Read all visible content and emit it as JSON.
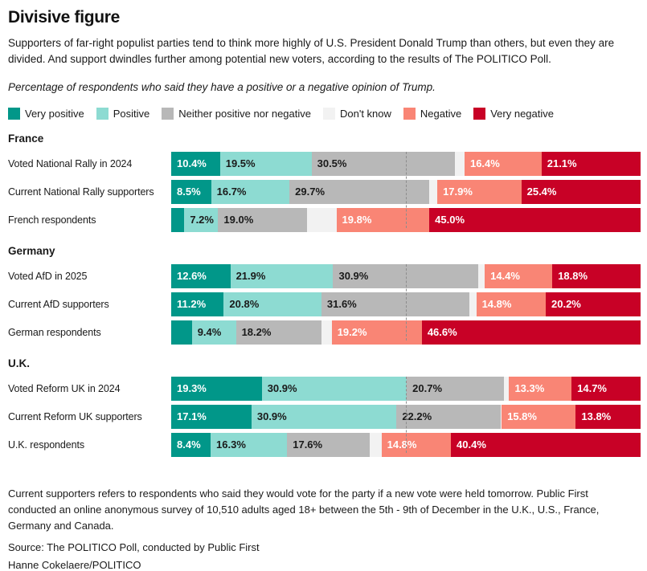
{
  "header": {
    "title": "Divisive figure",
    "subtitle": "Supporters of far-right populist parties tend to think more highly of U.S. President Donald Trump than others, but even they are divided. And support dwindles further among potential new voters, according to the results of The POLITICO Poll.",
    "note": "Percentage of respondents who said they have a positive or a negative opinion of Trump."
  },
  "legend": [
    {
      "label": "Very positive",
      "color": "#019789",
      "text_color": "#ffffff"
    },
    {
      "label": "Positive",
      "color": "#8DDBD2",
      "text_color": "#1a1a1a"
    },
    {
      "label": "Neither positive nor negative",
      "color": "#B8B8B8",
      "text_color": "#1a1a1a"
    },
    {
      "label": "Don't know",
      "color": "#F2F2F2",
      "text_color": "#1a1a1a"
    },
    {
      "label": "Negative",
      "color": "#F98575",
      "text_color": "#ffffff"
    },
    {
      "label": "Very negative",
      "color": "#C80126",
      "text_color": "#ffffff"
    }
  ],
  "chart_data": {
    "type": "bar",
    "stacked": true,
    "orientation": "horizontal",
    "unit": "%",
    "xlim": [
      0,
      100
    ],
    "reference_line_pct": 50,
    "series_names": [
      "Very positive",
      "Positive",
      "Neither positive nor negative",
      "Don't know",
      "Negative",
      "Very negative"
    ],
    "groups": [
      {
        "name": "France",
        "rows": [
          {
            "label": "Voted National Rally in 2024",
            "values": [
              10.4,
              19.5,
              30.5,
              2.1,
              16.4,
              21.1
            ],
            "value_labels": [
              "10.4%",
              "19.5%",
              "30.5%",
              "",
              "16.4%",
              "21.1%"
            ]
          },
          {
            "label": "Current National Rally supporters",
            "values": [
              8.5,
              16.7,
              29.7,
              1.8,
              17.9,
              25.4
            ],
            "value_labels": [
              "8.5%",
              "16.7%",
              "29.7%",
              "",
              "17.9%",
              "25.4%"
            ]
          },
          {
            "label": "French respondents",
            "values": [
              2.8,
              7.2,
              19.0,
              6.2,
              19.8,
              45.0
            ],
            "value_labels": [
              "",
              "7.2%",
              "19.0%",
              "",
              "19.8%",
              "45.0%"
            ]
          }
        ]
      },
      {
        "name": "Germany",
        "rows": [
          {
            "label": "Voted AfD in 2025",
            "values": [
              12.6,
              21.9,
              30.9,
              1.4,
              14.4,
              18.8
            ],
            "value_labels": [
              "12.6%",
              "21.9%",
              "30.9%",
              "",
              "14.4%",
              "18.8%"
            ]
          },
          {
            "label": "Current AfD supporters",
            "values": [
              11.2,
              20.8,
              31.6,
              1.4,
              14.8,
              20.2
            ],
            "value_labels": [
              "11.2%",
              "20.8%",
              "31.6%",
              "",
              "14.8%",
              "20.2%"
            ]
          },
          {
            "label": "German respondents",
            "values": [
              4.4,
              9.4,
              18.2,
              2.2,
              19.2,
              46.6
            ],
            "value_labels": [
              "",
              "9.4%",
              "18.2%",
              "",
              "19.2%",
              "46.6%"
            ]
          }
        ]
      },
      {
        "name": "U.K.",
        "rows": [
          {
            "label": "Voted Reform UK in 2024",
            "values": [
              19.3,
              30.9,
              20.7,
              1.1,
              13.3,
              14.7
            ],
            "value_labels": [
              "19.3%",
              "30.9%",
              "20.7%",
              "",
              "13.3%",
              "14.7%"
            ]
          },
          {
            "label": "Current Reform UK supporters",
            "values": [
              17.1,
              30.9,
              22.2,
              0.2,
              15.8,
              13.8
            ],
            "value_labels": [
              "17.1%",
              "30.9%",
              "22.2%",
              "",
              "15.8%",
              "13.8%"
            ]
          },
          {
            "label": "U.K. respondents",
            "values": [
              8.4,
              16.3,
              17.6,
              2.5,
              14.8,
              40.4
            ],
            "value_labels": [
              "8.4%",
              "16.3%",
              "17.6%",
              "",
              "14.8%",
              "40.4%"
            ]
          }
        ]
      }
    ]
  },
  "footer": {
    "methodology": "Current supporters refers to respondents who said they would vote for the party if a new vote were held tomorrow. Public First conducted an online anonymous survey of 10,510 adults aged 18+ between the 5th - 9th of December in the U.K., U.S., France, Germany and Canada.",
    "source": "Source: The POLITICO Poll, conducted by Public First",
    "credit": "Hanne Cokelaere/POLITICO"
  }
}
